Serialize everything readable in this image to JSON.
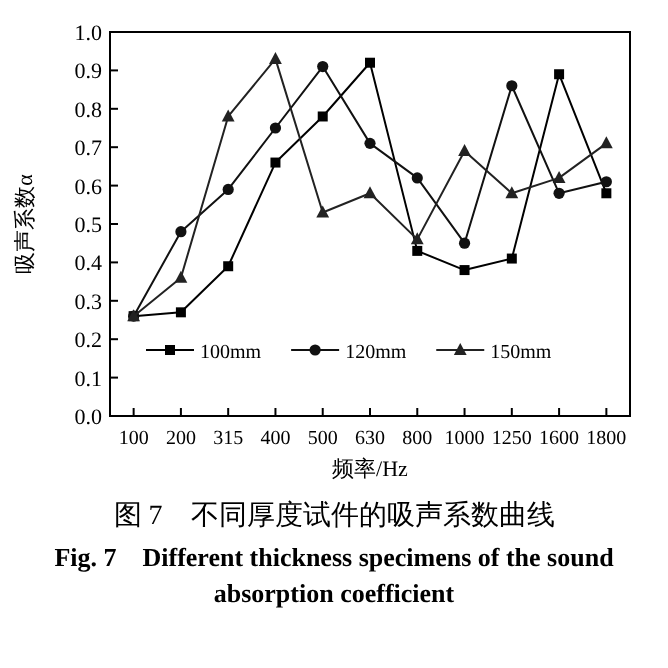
{
  "chart_data": {
    "type": "line",
    "xlabel": "频率/Hz",
    "ylabel": "吸声系数α",
    "categories": [
      "100",
      "200",
      "315",
      "400",
      "500",
      "630",
      "800",
      "1000",
      "1250",
      "1600",
      "1800"
    ],
    "series": [
      {
        "name": "100mm",
        "color": "#000000",
        "marker": "square",
        "values": [
          0.26,
          0.27,
          0.39,
          0.66,
          0.78,
          0.92,
          0.43,
          0.38,
          0.41,
          0.89,
          0.58
        ]
      },
      {
        "name": "120mm",
        "color": "#111111",
        "marker": "circle",
        "values": [
          0.26,
          0.48,
          0.59,
          0.75,
          0.91,
          0.71,
          0.62,
          0.45,
          0.86,
          0.58,
          0.61
        ]
      },
      {
        "name": "150mm",
        "color": "#222222",
        "marker": "triangle",
        "values": [
          0.26,
          0.36,
          0.78,
          0.93,
          0.53,
          0.58,
          0.46,
          0.69,
          0.58,
          0.62,
          0.71
        ]
      }
    ],
    "ylim": [
      0,
      1
    ],
    "yticks": [
      {
        "value": 0,
        "label": "0.0"
      },
      0.1,
      0.2,
      0.3,
      0.4,
      0.5,
      0.6,
      0.7,
      0.8,
      0.9,
      {
        "value": 1,
        "label": "1.0"
      }
    ],
    "grid": false,
    "legend": "bottom",
    "line_style": "solid",
    "annotations": [
      "图 7　不同厚度试件的吸声系数曲线",
      "Fig. 7　Different thickness specimens of the sound absorption coefficient"
    ]
  }
}
